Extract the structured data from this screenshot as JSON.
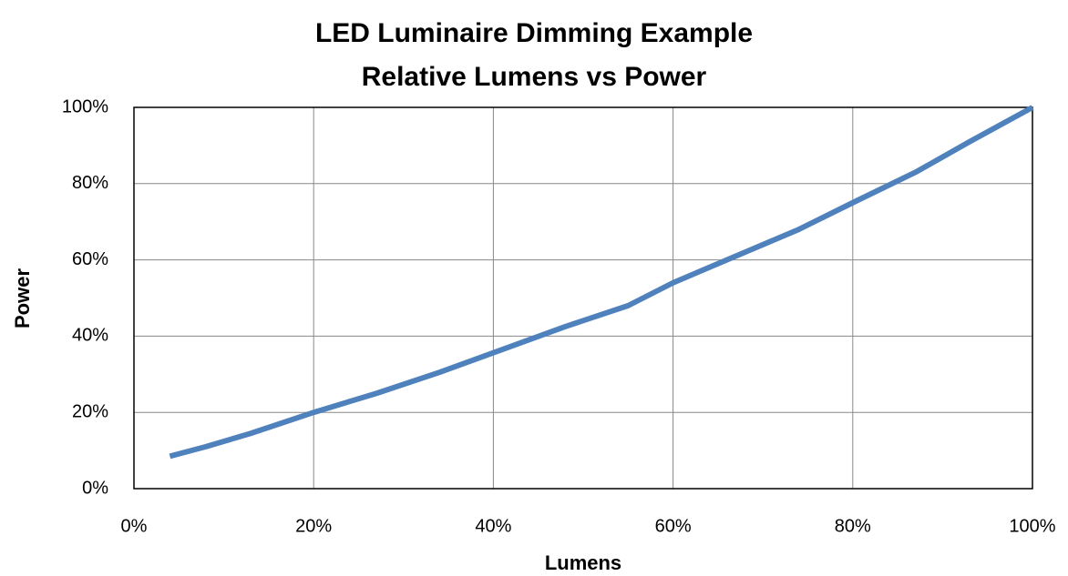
{
  "chart_data": {
    "type": "line",
    "title": "LED Luminaire Dimming Example",
    "subtitle": "Relative Lumens vs Power",
    "x_label": "Lumens",
    "y_label": "Power",
    "x": [
      4,
      8,
      13,
      20,
      27,
      34,
      41,
      48,
      55,
      60,
      67,
      74,
      80,
      87,
      93,
      100
    ],
    "values": [
      8.5,
      11,
      14.5,
      20,
      25,
      30.5,
      36.5,
      42.5,
      48,
      54,
      61,
      68,
      75,
      83,
      91,
      100
    ],
    "color": "#4f81bd",
    "xlim": [
      0,
      100
    ],
    "xticks": [
      {
        "value": 0,
        "label": "0%"
      },
      {
        "value": 20,
        "label": "20%"
      },
      {
        "value": 40,
        "label": "40%"
      },
      {
        "value": 60,
        "label": "60%"
      },
      {
        "value": 80,
        "label": "80%"
      },
      {
        "value": 100,
        "label": "100%"
      }
    ],
    "ylim": [
      0,
      100
    ],
    "yticks": [
      {
        "value": 0,
        "label": "0%"
      },
      {
        "value": 20,
        "label": "20%"
      },
      {
        "value": 40,
        "label": "40%"
      },
      {
        "value": 60,
        "label": "60%"
      },
      {
        "value": 80,
        "label": "80%"
      },
      {
        "value": 100,
        "label": "100%"
      }
    ],
    "grid": true
  }
}
